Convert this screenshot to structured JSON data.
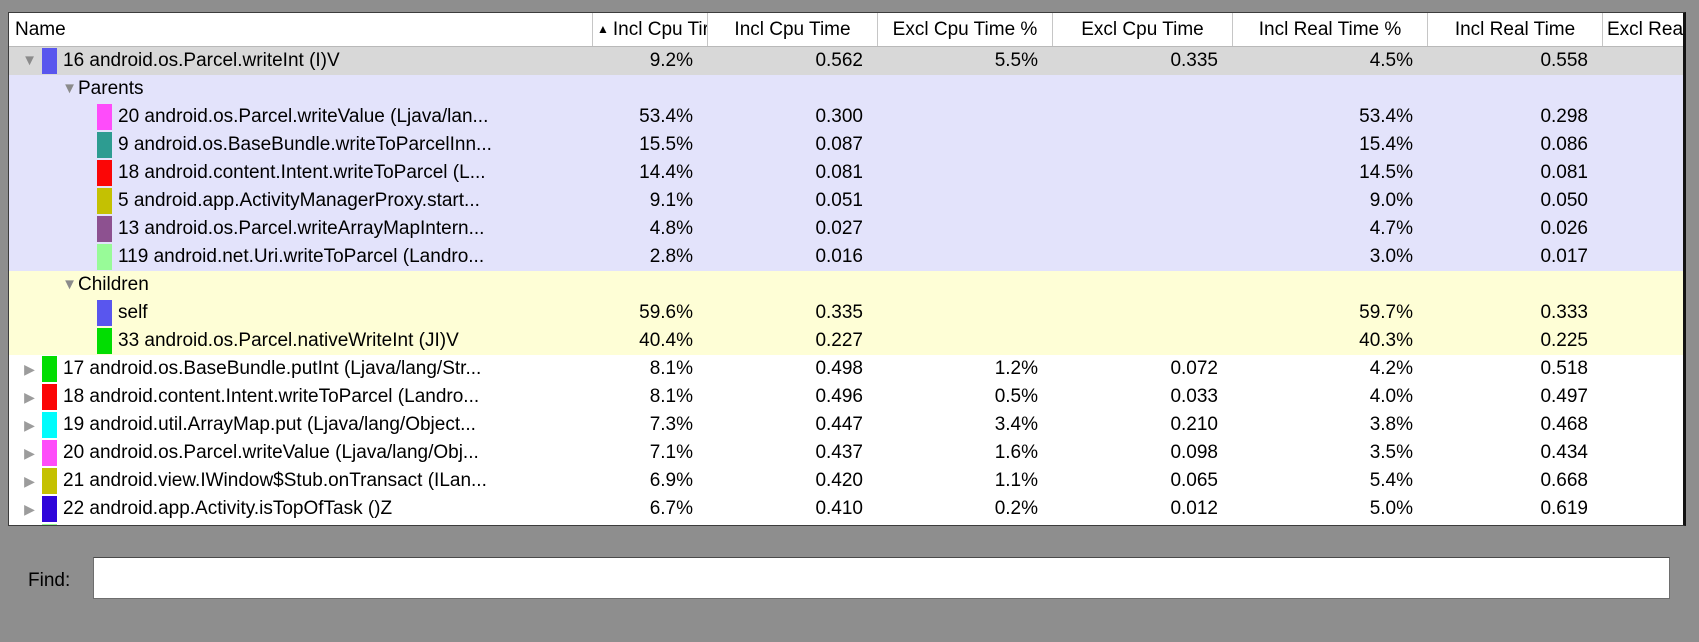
{
  "window": {
    "background": "#8e8e8e"
  },
  "table": {
    "header": {
      "sort_icon": "up-arrow",
      "sort_glyph": "▲",
      "columns": [
        {
          "id": "name",
          "label": "Name",
          "sorted": false
        },
        {
          "id": "incl_cpu_pct",
          "label": "Incl Cpu Tir",
          "sorted": true
        },
        {
          "id": "incl_cpu",
          "label": "Incl Cpu Time",
          "sorted": false
        },
        {
          "id": "excl_cpu_pct",
          "label": "Excl Cpu Time %",
          "sorted": false
        },
        {
          "id": "excl_cpu",
          "label": "Excl Cpu Time",
          "sorted": false
        },
        {
          "id": "incl_real_pct",
          "label": "Incl Real Time %",
          "sorted": false
        },
        {
          "id": "incl_real",
          "label": "Incl Real Time",
          "sorted": false
        },
        {
          "id": "excl_real",
          "label": "Excl Real",
          "sorted": false
        }
      ]
    },
    "section_colors": {
      "selected_row": "#d8d8d8",
      "parents_section": "#e3e3fb",
      "children_section": "#fefed6",
      "default_row": "#ffffff"
    },
    "rows": [
      {
        "kind": "method",
        "bg": "selected",
        "indent": 0,
        "disclosure": "expanded",
        "chip": "#5956ee",
        "name": "16 android.os.Parcel.writeInt (I)V",
        "values": [
          "9.2%",
          "0.562",
          "5.5%",
          "0.335",
          "4.5%",
          "0.558",
          ""
        ]
      },
      {
        "kind": "group",
        "bg": "parents",
        "indent": 1,
        "disclosure": "expanded",
        "chip": null,
        "name": "Parents",
        "values": [
          "",
          "",
          "",
          "",
          "",
          "",
          ""
        ]
      },
      {
        "kind": "sub",
        "bg": "parents",
        "indent": 2,
        "disclosure": null,
        "chip": "#fe4cfa",
        "name": "20 android.os.Parcel.writeValue (Ljava/lan...",
        "values": [
          "53.4%",
          "0.300",
          "",
          "",
          "53.4%",
          "0.298",
          ""
        ]
      },
      {
        "kind": "sub",
        "bg": "parents",
        "indent": 2,
        "disclosure": null,
        "chip": "#2d9c91",
        "name": "9 android.os.BaseBundle.writeToParcelInn...",
        "values": [
          "15.5%",
          "0.087",
          "",
          "",
          "15.4%",
          "0.086",
          ""
        ]
      },
      {
        "kind": "sub",
        "bg": "parents",
        "indent": 2,
        "disclosure": null,
        "chip": "#fb0606",
        "name": "18 android.content.Intent.writeToParcel (L...",
        "values": [
          "14.4%",
          "0.081",
          "",
          "",
          "14.5%",
          "0.081",
          ""
        ]
      },
      {
        "kind": "sub",
        "bg": "parents",
        "indent": 2,
        "disclosure": null,
        "chip": "#c4c102",
        "name": "5 android.app.ActivityManagerProxy.start...",
        "values": [
          "9.1%",
          "0.051",
          "",
          "",
          "9.0%",
          "0.050",
          ""
        ]
      },
      {
        "kind": "sub",
        "bg": "parents",
        "indent": 2,
        "disclosure": null,
        "chip": "#8d5190",
        "name": "13 android.os.Parcel.writeArrayMapIntern...",
        "values": [
          "4.8%",
          "0.027",
          "",
          "",
          "4.7%",
          "0.026",
          ""
        ]
      },
      {
        "kind": "sub",
        "bg": "parents",
        "indent": 2,
        "disclosure": null,
        "chip": "#98fb98",
        "name": "119 android.net.Uri.writeToParcel (Landro...",
        "values": [
          "2.8%",
          "0.016",
          "",
          "",
          "3.0%",
          "0.017",
          ""
        ]
      },
      {
        "kind": "group",
        "bg": "children",
        "indent": 1,
        "disclosure": "expanded",
        "chip": null,
        "name": "Children",
        "values": [
          "",
          "",
          "",
          "",
          "",
          "",
          ""
        ]
      },
      {
        "kind": "sub",
        "bg": "children",
        "indent": 2,
        "disclosure": null,
        "chip": "#5956ee",
        "name": "self",
        "values": [
          "59.6%",
          "0.335",
          "",
          "",
          "59.7%",
          "0.333",
          ""
        ]
      },
      {
        "kind": "sub",
        "bg": "children",
        "indent": 2,
        "disclosure": null,
        "chip": "#02dd02",
        "name": "33 android.os.Parcel.nativeWriteInt (JI)V",
        "values": [
          "40.4%",
          "0.227",
          "",
          "",
          "40.3%",
          "0.225",
          ""
        ]
      },
      {
        "kind": "method",
        "bg": "white",
        "indent": 0,
        "disclosure": "collapsed",
        "chip": "#02dd02",
        "name": "17 android.os.BaseBundle.putInt (Ljava/lang/Str...",
        "values": [
          "8.1%",
          "0.498",
          "1.2%",
          "0.072",
          "4.2%",
          "0.518",
          ""
        ]
      },
      {
        "kind": "method",
        "bg": "white",
        "indent": 0,
        "disclosure": "collapsed",
        "chip": "#fb0606",
        "name": "18 android.content.Intent.writeToParcel (Landro...",
        "values": [
          "8.1%",
          "0.496",
          "0.5%",
          "0.033",
          "4.0%",
          "0.497",
          ""
        ]
      },
      {
        "kind": "method",
        "bg": "white",
        "indent": 0,
        "disclosure": "collapsed",
        "chip": "#02fcfc",
        "name": "19 android.util.ArrayMap.put (Ljava/lang/Object...",
        "values": [
          "7.3%",
          "0.447",
          "3.4%",
          "0.210",
          "3.8%",
          "0.468",
          ""
        ]
      },
      {
        "kind": "method",
        "bg": "white",
        "indent": 0,
        "disclosure": "collapsed",
        "chip": "#fe4cfa",
        "name": "20 android.os.Parcel.writeValue (Ljava/lang/Obj...",
        "values": [
          "7.1%",
          "0.437",
          "1.6%",
          "0.098",
          "3.5%",
          "0.434",
          ""
        ]
      },
      {
        "kind": "method",
        "bg": "white",
        "indent": 0,
        "disclosure": "collapsed",
        "chip": "#c4c102",
        "name": "21 android.view.IWindow$Stub.onTransact (ILan...",
        "values": [
          "6.9%",
          "0.420",
          "1.1%",
          "0.065",
          "5.4%",
          "0.668",
          ""
        ]
      },
      {
        "kind": "method",
        "bg": "white",
        "indent": 0,
        "disclosure": "collapsed",
        "chip": "#2f05da",
        "name": "22 android.app.Activity.isTopOfTask ()Z",
        "values": [
          "6.7%",
          "0.410",
          "0.2%",
          "0.012",
          "5.0%",
          "0.619",
          ""
        ]
      },
      {
        "kind": "partial",
        "bg": "white",
        "indent": 0,
        "disclosure": "collapsed",
        "chip": "#98fb98",
        "name": "",
        "values": [
          "",
          "",
          "",
          "",
          "",
          "",
          ""
        ]
      }
    ]
  },
  "find": {
    "label": "Find:",
    "value": ""
  }
}
